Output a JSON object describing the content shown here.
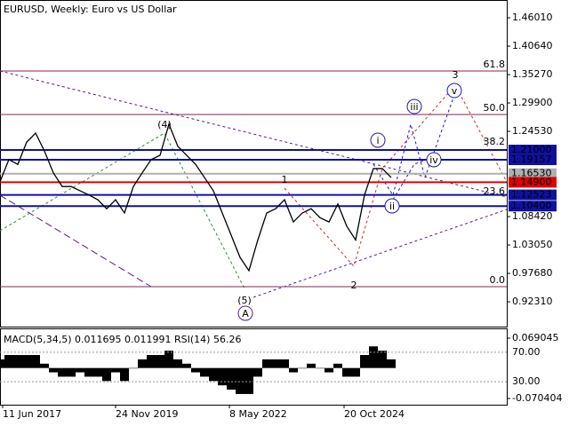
{
  "chart_data": {
    "type": "line",
    "title": "EURUSD, Weekly:  Euro vs US Dollar",
    "xlim": [
      0,
      57
    ],
    "xticks": [
      {
        "value": 0.3,
        "label": "11 Jun 2017"
      },
      {
        "value": 13,
        "label": "24 Nov 2019"
      },
      {
        "value": 25.8,
        "label": "8 May 2022"
      },
      {
        "value": 38.7,
        "label": "20 Oct 2024"
      }
    ],
    "ylim": [
      0.8812,
      1.4937
    ],
    "yticks": [
      {
        "value": 1.4601,
        "label": "1.46010"
      },
      {
        "value": 1.4064,
        "label": "1.40640"
      },
      {
        "value": 1.3527,
        "label": "1.35270"
      },
      {
        "value": 1.299,
        "label": "1.29900"
      },
      {
        "value": 1.2453,
        "label": "1.24530"
      },
      {
        "value": 1.0842,
        "label": "1.08420"
      },
      {
        "value": 1.0305,
        "label": "1.03050"
      },
      {
        "value": 0.9768,
        "label": "0.97680"
      },
      {
        "value": 0.9231,
        "label": "0.92310"
      }
    ],
    "color": "#000000",
    "values": [
      1.15,
      1.192,
      1.183,
      1.225,
      1.242,
      1.208,
      1.167,
      1.141,
      1.141,
      1.133,
      1.125,
      1.116,
      1.099,
      1.116,
      1.091,
      1.141,
      1.167,
      1.192,
      1.2,
      1.259,
      1.217,
      1.2,
      1.183,
      1.158,
      1.133,
      1.091,
      1.049,
      1.007,
      0.982,
      1.04,
      1.091,
      1.099,
      1.116,
      1.074,
      1.091,
      1.099,
      1.082,
      1.074,
      1.108,
      1.066,
      1.04,
      1.125,
      1.175,
      1.175,
      1.158
    ],
    "levels": [
      {
        "value": 1.21,
        "label": "1.21000",
        "color": "#1010a0"
      },
      {
        "value": 1.19157,
        "label": "1.19157",
        "color": "#1010a0"
      },
      {
        "value": 1.1653,
        "label": "1.16530",
        "color": "#b0b0b0"
      },
      {
        "value": 1.149,
        "label": "1.14900",
        "color": "#e00000"
      },
      {
        "value": 1.12523,
        "label": "1.12523",
        "color": "#1010a0"
      },
      {
        "value": 1.104,
        "label": "1.10400",
        "color": "#1010a0"
      }
    ],
    "fib_color": "#8b2252",
    "fib_levels": [
      {
        "label": "61.8",
        "price": 1.3595,
        "line": true
      },
      {
        "label": "50.0",
        "price": 1.2772,
        "line": true
      },
      {
        "label": "38.2",
        "price": 1.2135,
        "line": false
      },
      {
        "label": "23.6",
        "price": 1.1195,
        "line": false
      },
      {
        "label": "0.0",
        "price": 0.9517,
        "line": true
      }
    ],
    "wave_labels": [
      {
        "text": "(4)",
        "x": 18.5,
        "price": 1.2588,
        "color": "#2e8b2e",
        "circle": false
      },
      {
        "text": "(5)",
        "x": 27.5,
        "price": 0.9265,
        "color": "#2e8b2e",
        "circle": false
      },
      {
        "text": "A",
        "x": 27.6,
        "price": 0.9014,
        "color": "#5a1a8a",
        "circle": true
      },
      {
        "text": "i",
        "x": 42.5,
        "price": 1.2286,
        "color": "#1a1ab0",
        "circle": true
      },
      {
        "text": "ii",
        "x": 44.1,
        "price": 1.1044,
        "color": "#1a1ab0",
        "circle": true
      },
      {
        "text": "iii",
        "x": 46.6,
        "price": 1.2923,
        "color": "#1a1ab0",
        "circle": true
      },
      {
        "text": "iv",
        "x": 48.8,
        "price": 1.1917,
        "color": "#1a1ab0",
        "circle": true
      },
      {
        "text": "v",
        "x": 51.1,
        "price": 1.3225,
        "color": "#1a1ab0",
        "circle": true
      },
      {
        "text": "1",
        "x": 32,
        "price": 1.1547,
        "color": "#c03030",
        "circle": false
      },
      {
        "text": "2",
        "x": 39.8,
        "price": 0.9551,
        "color": "#8b2252",
        "circle": false
      },
      {
        "text": "3",
        "x": 51.2,
        "price": 1.3528,
        "color": "#c03030",
        "circle": false
      }
    ],
    "indicator": {
      "title": "MACD(5,34,5) 0.011695 0.011991 RSI(14) 56.26",
      "macd_lim": [
        -0.0827,
        0.0875
      ],
      "macd_ticks": [
        {
          "value": 0.069045,
          "label": "0.069045"
        },
        {
          "value": -0.070404,
          "label": "-0.070404"
        }
      ],
      "rsi_lim": [
        0,
        100
      ],
      "rsi_ticks": [
        {
          "value": 70,
          "label": "70.00"
        },
        {
          "value": 30,
          "label": "30.00"
        }
      ],
      "color": "#000000",
      "values": [
        0.02,
        0.03,
        0.03,
        0.03,
        0.03,
        0.01,
        -0.01,
        -0.02,
        -0.02,
        -0.01,
        -0.02,
        -0.02,
        -0.03,
        -0.01,
        -0.03,
        0.0,
        0.02,
        0.03,
        0.03,
        0.04,
        0.02,
        0.01,
        -0.01,
        -0.02,
        -0.03,
        -0.04,
        -0.05,
        -0.06,
        -0.06,
        -0.02,
        0.02,
        0.02,
        0.02,
        -0.01,
        0.0,
        0.01,
        0.0,
        -0.01,
        0.01,
        -0.02,
        -0.02,
        0.03,
        0.05,
        0.04,
        0.02
      ]
    }
  }
}
